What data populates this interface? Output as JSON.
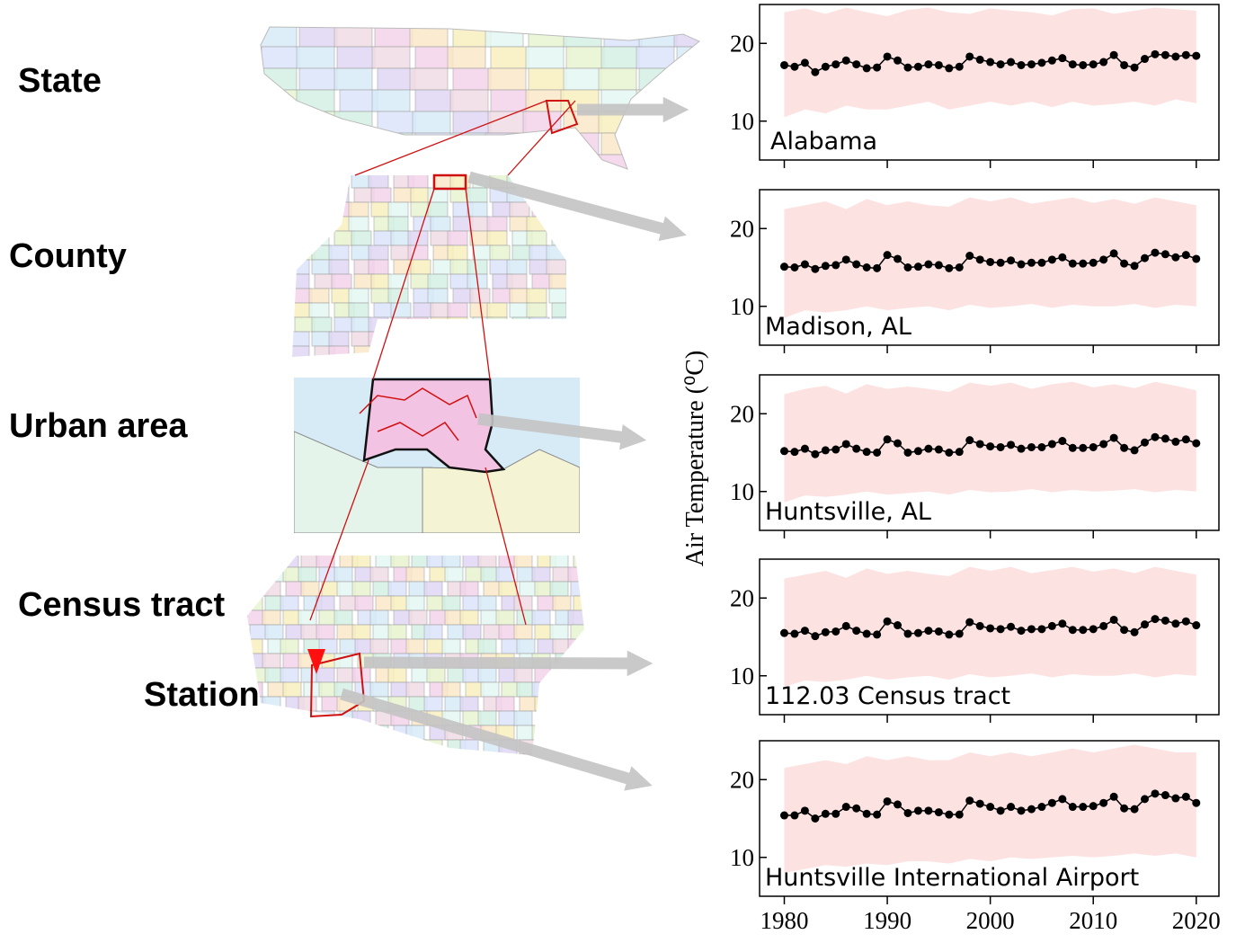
{
  "levels": [
    "State",
    "County",
    "Urban area",
    "Census tract",
    "Station"
  ],
  "y_axis_label": "Air Temperature (⁰C)",
  "chart_data": [
    {
      "type": "line",
      "title": "Alabama",
      "color": "#000000",
      "x": [
        1980,
        1981,
        1982,
        1983,
        1984,
        1985,
        1986,
        1987,
        1988,
        1989,
        1990,
        1991,
        1992,
        1993,
        1994,
        1995,
        1996,
        1997,
        1998,
        1999,
        2000,
        2001,
        2002,
        2003,
        2004,
        2005,
        2006,
        2007,
        2008,
        2009,
        2010,
        2011,
        2012,
        2013,
        2014,
        2015,
        2016,
        2017,
        2018,
        2019,
        2020
      ],
      "values": [
        17.2,
        17.0,
        17.5,
        16.3,
        17.0,
        17.3,
        17.8,
        17.3,
        16.8,
        16.9,
        18.3,
        17.8,
        16.9,
        17.0,
        17.3,
        17.2,
        16.8,
        17.0,
        18.3,
        17.9,
        17.6,
        17.3,
        17.6,
        17.2,
        17.3,
        17.5,
        17.8,
        18.1,
        17.3,
        17.2,
        17.3,
        17.6,
        18.5,
        17.2,
        16.9,
        18.0,
        18.6,
        18.5,
        18.3,
        18.5,
        18.4
      ],
      "band": {
        "color": "#fde2e2",
        "x": [
          1980,
          1982,
          1984,
          1986,
          1988,
          1990,
          1992,
          1994,
          1996,
          1998,
          2000,
          2002,
          2004,
          2006,
          2008,
          2010,
          2012,
          2014,
          2016,
          2018,
          2020
        ],
        "upper": [
          24,
          24.5,
          23.8,
          24.6,
          24,
          23.5,
          24.3,
          24.6,
          24,
          23.8,
          24.5,
          24.2,
          24,
          23.6,
          24.4,
          24.5,
          23.8,
          24.2,
          24.6,
          24.4,
          24.2
        ],
        "lower": [
          10.5,
          11.5,
          11,
          12,
          11.5,
          11.5,
          12,
          12.5,
          11.5,
          12,
          12.5,
          12,
          12.5,
          11.8,
          12.5,
          12,
          12.2,
          12.5,
          12,
          12.8,
          12.3
        ]
      },
      "xlim": [
        1977.6,
        2022.2
      ],
      "ylim": [
        5,
        25
      ],
      "yticks": [
        10,
        20
      ],
      "xticks": [
        1980,
        1990,
        2000,
        2010,
        2020
      ],
      "xtick_labels": false
    },
    {
      "type": "line",
      "title": "Madison, AL",
      "color": "#000000",
      "x": [
        1980,
        1981,
        1982,
        1983,
        1984,
        1985,
        1986,
        1987,
        1988,
        1989,
        1990,
        1991,
        1992,
        1993,
        1994,
        1995,
        1996,
        1997,
        1998,
        1999,
        2000,
        2001,
        2002,
        2003,
        2004,
        2005,
        2006,
        2007,
        2008,
        2009,
        2010,
        2011,
        2012,
        2013,
        2014,
        2015,
        2016,
        2017,
        2018,
        2019,
        2020
      ],
      "values": [
        15.1,
        15.0,
        15.4,
        14.8,
        15.2,
        15.3,
        16.0,
        15.4,
        15.0,
        14.9,
        16.6,
        16.1,
        15.0,
        15.1,
        15.4,
        15.3,
        14.9,
        15.0,
        16.5,
        16.0,
        15.7,
        15.6,
        15.9,
        15.4,
        15.6,
        15.6,
        16.0,
        16.3,
        15.5,
        15.5,
        15.6,
        16.0,
        16.8,
        15.5,
        15.2,
        16.2,
        16.9,
        16.7,
        16.3,
        16.6,
        16.1
      ],
      "band": {
        "color": "#fde2e2",
        "x": [
          1980,
          1982,
          1984,
          1986,
          1988,
          1990,
          1992,
          1994,
          1996,
          1998,
          2000,
          2002,
          2004,
          2006,
          2008,
          2010,
          2012,
          2014,
          2016,
          2018,
          2020
        ],
        "upper": [
          22.5,
          23,
          23.5,
          22.5,
          23.8,
          23,
          23.5,
          23,
          22.8,
          24,
          23.5,
          24,
          23.2,
          23.6,
          24,
          23.3,
          23.8,
          23.2,
          24,
          23.5,
          23
        ],
        "lower": [
          8.5,
          9.5,
          9.2,
          9.5,
          10,
          9.5,
          9.8,
          10,
          9.5,
          10.2,
          9.8,
          10,
          10.3,
          9.8,
          10.2,
          10,
          10,
          10.3,
          9.8,
          10.2,
          10
        ]
      },
      "xlim": [
        1977.6,
        2022.2
      ],
      "ylim": [
        5,
        25
      ],
      "yticks": [
        10,
        20
      ],
      "xticks": [
        1980,
        1990,
        2000,
        2010,
        2020
      ],
      "xtick_labels": false
    },
    {
      "type": "line",
      "title": "Huntsville, AL",
      "color": "#000000",
      "x": [
        1980,
        1981,
        1982,
        1983,
        1984,
        1985,
        1986,
        1987,
        1988,
        1989,
        1990,
        1991,
        1992,
        1993,
        1994,
        1995,
        1996,
        1997,
        1998,
        1999,
        2000,
        2001,
        2002,
        2003,
        2004,
        2005,
        2006,
        2007,
        2008,
        2009,
        2010,
        2011,
        2012,
        2013,
        2014,
        2015,
        2016,
        2017,
        2018,
        2019,
        2020
      ],
      "values": [
        15.2,
        15.1,
        15.5,
        14.8,
        15.3,
        15.4,
        16.1,
        15.5,
        15.1,
        15.0,
        16.7,
        16.2,
        15.0,
        15.2,
        15.5,
        15.4,
        15.0,
        15.1,
        16.6,
        16.1,
        15.8,
        15.7,
        16.0,
        15.5,
        15.7,
        15.7,
        16.1,
        16.5,
        15.6,
        15.6,
        15.7,
        16.1,
        16.9,
        15.6,
        15.3,
        16.3,
        17.0,
        16.8,
        16.4,
        16.7,
        16.2
      ],
      "band": {
        "color": "#fde2e2",
        "x": [
          1980,
          1982,
          1984,
          1986,
          1988,
          1990,
          1992,
          1994,
          1996,
          1998,
          2000,
          2002,
          2004,
          2006,
          2008,
          2010,
          2012,
          2014,
          2016,
          2018,
          2020
        ],
        "upper": [
          22.5,
          23.2,
          23.6,
          22.6,
          23.8,
          23.2,
          23.5,
          23.2,
          22.8,
          24,
          23.6,
          24,
          23.2,
          23.8,
          24.1,
          23.4,
          23.8,
          23.3,
          24.1,
          23.6,
          23
        ],
        "lower": [
          8.6,
          9.5,
          9.3,
          9.6,
          10,
          9.6,
          9.8,
          10,
          9.6,
          10.2,
          9.9,
          10,
          10.3,
          9.9,
          10.2,
          10,
          10.1,
          10.3,
          9.9,
          10.2,
          10
        ]
      },
      "xlim": [
        1977.6,
        2022.2
      ],
      "ylim": [
        5,
        25
      ],
      "yticks": [
        10,
        20
      ],
      "xticks": [
        1980,
        1990,
        2000,
        2010,
        2020
      ],
      "xtick_labels": false
    },
    {
      "type": "line",
      "title": "112.03 Census tract",
      "color": "#000000",
      "x": [
        1980,
        1981,
        1982,
        1983,
        1984,
        1985,
        1986,
        1987,
        1988,
        1989,
        1990,
        1991,
        1992,
        1993,
        1994,
        1995,
        1996,
        1997,
        1998,
        1999,
        2000,
        2001,
        2002,
        2003,
        2004,
        2005,
        2006,
        2007,
        2008,
        2009,
        2010,
        2011,
        2012,
        2013,
        2014,
        2015,
        2016,
        2017,
        2018,
        2019,
        2020
      ],
      "values": [
        15.5,
        15.4,
        15.8,
        15.1,
        15.6,
        15.7,
        16.4,
        15.8,
        15.4,
        15.3,
        17.0,
        16.5,
        15.4,
        15.5,
        15.8,
        15.7,
        15.3,
        15.4,
        16.9,
        16.4,
        16.1,
        16.0,
        16.3,
        15.8,
        16.0,
        16.0,
        16.4,
        16.7,
        15.9,
        15.9,
        16.0,
        16.4,
        17.2,
        15.9,
        15.6,
        16.6,
        17.3,
        17.1,
        16.7,
        17.0,
        16.5
      ],
      "band": {
        "color": "#fde2e2",
        "x": [
          1980,
          1982,
          1984,
          1986,
          1988,
          1990,
          1992,
          1994,
          1996,
          1998,
          2000,
          2002,
          2004,
          2006,
          2008,
          2010,
          2012,
          2014,
          2016,
          2018,
          2020
        ],
        "upper": [
          22.5,
          23,
          23.5,
          22.6,
          23.8,
          23.1,
          23.5,
          23.1,
          22.8,
          24,
          23.5,
          24,
          23.2,
          23.6,
          24,
          23.4,
          23.8,
          23.2,
          24,
          23.5,
          23
        ],
        "lower": [
          8.6,
          9.4,
          9.2,
          9.5,
          10,
          9.5,
          9.8,
          10,
          9.5,
          10.2,
          9.8,
          10,
          10.3,
          9.8,
          10.2,
          10,
          10,
          10.3,
          9.8,
          10.2,
          10
        ]
      },
      "xlim": [
        1977.6,
        2022.2
      ],
      "ylim": [
        5,
        25
      ],
      "yticks": [
        10,
        20
      ],
      "xticks": [
        1980,
        1990,
        2000,
        2010,
        2020
      ],
      "xtick_labels": false
    },
    {
      "type": "line",
      "title": "Huntsville International Airport",
      "color": "#000000",
      "x": [
        1980,
        1981,
        1982,
        1983,
        1984,
        1985,
        1986,
        1987,
        1988,
        1989,
        1990,
        1991,
        1992,
        1993,
        1994,
        1995,
        1996,
        1997,
        1998,
        1999,
        2000,
        2001,
        2002,
        2003,
        2004,
        2005,
        2006,
        2007,
        2008,
        2009,
        2010,
        2011,
        2012,
        2013,
        2014,
        2015,
        2016,
        2017,
        2018,
        2019,
        2020
      ],
      "values": [
        15.4,
        15.4,
        16.0,
        15.0,
        15.6,
        15.6,
        16.5,
        16.3,
        15.6,
        15.5,
        17.2,
        16.8,
        15.7,
        16.0,
        16.0,
        15.8,
        15.5,
        15.5,
        17.3,
        16.9,
        16.5,
        16.0,
        16.5,
        16.0,
        16.2,
        16.5,
        17.0,
        17.5,
        16.5,
        16.5,
        16.6,
        17.0,
        17.8,
        16.3,
        16.2,
        17.5,
        18.2,
        18.0,
        17.6,
        17.8,
        17.0
      ],
      "band": {
        "color": "#fde2e2",
        "x": [
          1980,
          1982,
          1984,
          1986,
          1988,
          1990,
          1992,
          1994,
          1996,
          1998,
          2000,
          2002,
          2004,
          2006,
          2008,
          2010,
          2012,
          2014,
          2016,
          2018,
          2020
        ],
        "upper": [
          21.5,
          22,
          22.5,
          22,
          23,
          22.5,
          23,
          22.5,
          22.5,
          23.5,
          23,
          23.5,
          23,
          23.5,
          24,
          23.5,
          24,
          24.5,
          24,
          23.5,
          23.5
        ],
        "lower": [
          8,
          8.5,
          9,
          8.8,
          9.2,
          9,
          9.5,
          9.5,
          9.2,
          9.8,
          9.5,
          10,
          9.8,
          10,
          10.2,
          10,
          10.2,
          10.5,
          10.2,
          10.5,
          10
        ]
      },
      "xlim": [
        1977.6,
        2022.2
      ],
      "ylim": [
        5,
        25
      ],
      "yticks": [
        10,
        20
      ],
      "xticks": [
        1980,
        1990,
        2000,
        2010,
        2020
      ],
      "xtick_labels": true
    }
  ]
}
